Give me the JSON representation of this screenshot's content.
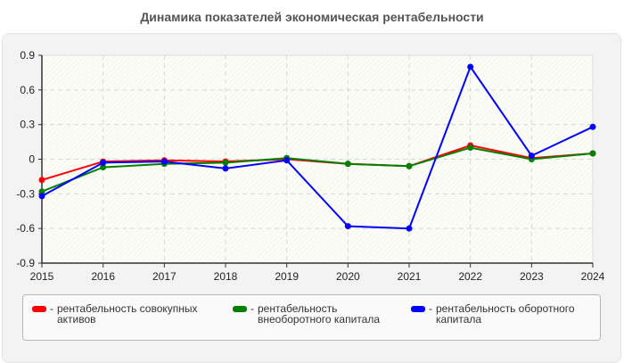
{
  "title": "Динамика показателей экономическая рентабельности",
  "chart_data": {
    "type": "line",
    "title": "Динамика показателей экономическая рентабельности",
    "xlabel": "",
    "ylabel": "",
    "categories": [
      "2015",
      "2016",
      "2017",
      "2018",
      "2019",
      "2020",
      "2021",
      "2022",
      "2023",
      "2024"
    ],
    "ylim": [
      -0.9,
      0.9
    ],
    "yticks": [
      "0.9",
      "0.6",
      "0.3",
      "0",
      "-0.3",
      "-0.6",
      "-0.9"
    ],
    "grid": true,
    "legend_position": "bottom",
    "series": [
      {
        "name": "рентабельность совокупных активов",
        "color": "#ff0000",
        "values": [
          -0.18,
          -0.02,
          -0.01,
          -0.02,
          0.0,
          -0.04,
          -0.06,
          0.12,
          0.01,
          0.05
        ]
      },
      {
        "name": "рентабельность внеоборотного капитала",
        "color": "#008000",
        "values": [
          -0.28,
          -0.07,
          -0.04,
          -0.03,
          0.01,
          -0.04,
          -0.06,
          0.1,
          0.0,
          0.05
        ]
      },
      {
        "name": "рентабельность оборотного капитала",
        "color": "#0000ff",
        "values": [
          -0.32,
          -0.03,
          -0.02,
          -0.08,
          -0.01,
          -0.58,
          -0.6,
          0.8,
          0.03,
          0.28
        ]
      }
    ]
  },
  "legend": {
    "items": [
      {
        "label": "рентабельность совокупных активов",
        "color": "#ff0000"
      },
      {
        "label": "рентабельность внеоборотного капитала",
        "color": "#008000"
      },
      {
        "label": "рентабельность оборотного капитала",
        "color": "#0000ff"
      }
    ],
    "separator": "-"
  }
}
